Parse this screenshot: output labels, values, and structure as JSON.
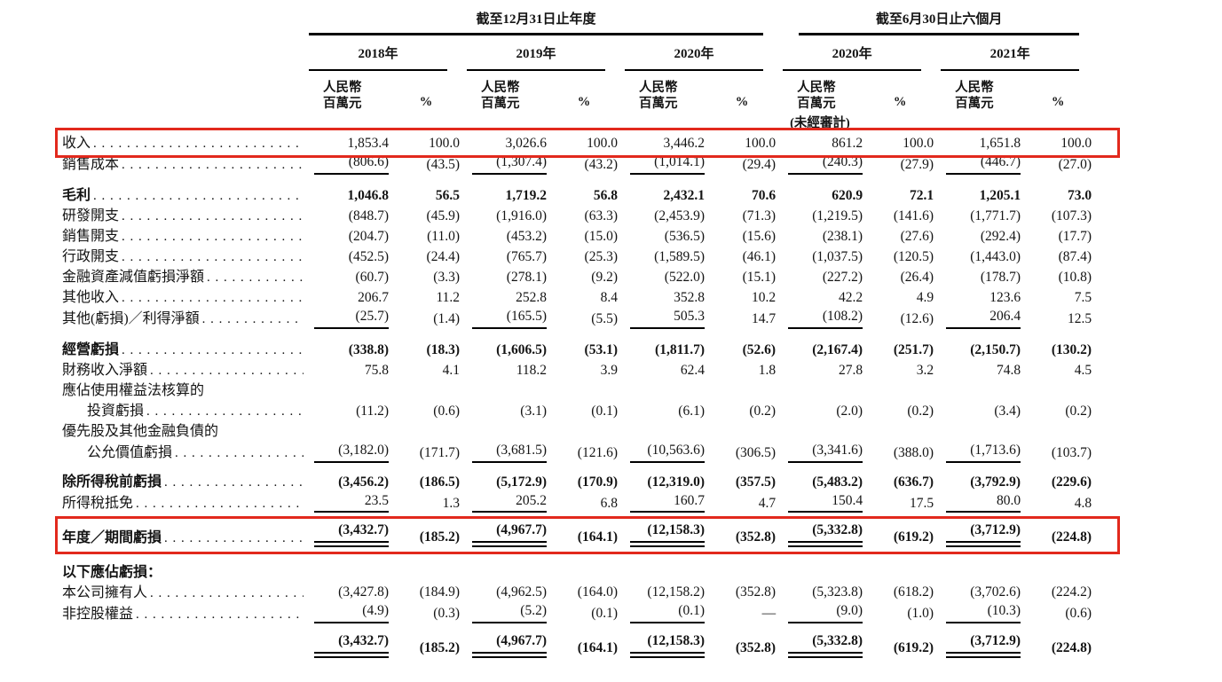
{
  "page": {
    "background": "#ffffff",
    "highlight_color": "#e2291d"
  },
  "table": {
    "col_groups": [
      {
        "title": "截至12月31日止年度",
        "years": [
          "2018年",
          "2019年",
          "2020年"
        ]
      },
      {
        "title": "截至6月30日止六個月",
        "years": [
          "2020年",
          "2021年"
        ]
      }
    ],
    "subheader": {
      "currency_line1": "人民幣",
      "currency_line2": "百萬元",
      "percent": "%"
    },
    "unaudited_note": "(未經審計)",
    "rows": [
      {
        "label": "收入",
        "leader": true,
        "highlight": true,
        "values": [
          "1,853.4",
          "100.0",
          "3,026.6",
          "100.0",
          "3,446.2",
          "100.0",
          "861.2",
          "100.0",
          "1,651.8",
          "100.0"
        ]
      },
      {
        "label": "銷售成本",
        "leader": true,
        "rule": "single",
        "values": [
          "(806.6)",
          "(43.5)",
          "(1,307.4)",
          "(43.2)",
          "(1,014.1)",
          "(29.4)",
          "(240.3)",
          "(27.9)",
          "(446.7)",
          "(27.0)"
        ]
      },
      {
        "label": "毛利",
        "leader": true,
        "bold": true,
        "space_before": 12,
        "values": [
          "1,046.8",
          "56.5",
          "1,719.2",
          "56.8",
          "2,432.1",
          "70.6",
          "620.9",
          "72.1",
          "1,205.1",
          "73.0"
        ]
      },
      {
        "label": "研發開支",
        "leader": true,
        "values": [
          "(848.7)",
          "(45.9)",
          "(1,916.0)",
          "(63.3)",
          "(2,453.9)",
          "(71.3)",
          "(1,219.5)",
          "(141.6)",
          "(1,771.7)",
          "(107.3)"
        ]
      },
      {
        "label": "銷售開支",
        "leader": true,
        "values": [
          "(204.7)",
          "(11.0)",
          "(453.2)",
          "(15.0)",
          "(536.5)",
          "(15.6)",
          "(238.1)",
          "(27.6)",
          "(292.4)",
          "(17.7)"
        ]
      },
      {
        "label": "行政開支",
        "leader": true,
        "values": [
          "(452.5)",
          "(24.4)",
          "(765.7)",
          "(25.3)",
          "(1,589.5)",
          "(46.1)",
          "(1,037.5)",
          "(120.5)",
          "(1,443.0)",
          "(87.4)"
        ]
      },
      {
        "label": "金融資產減值虧損淨額",
        "leader": true,
        "values": [
          "(60.7)",
          "(3.3)",
          "(278.1)",
          "(9.2)",
          "(522.0)",
          "(15.1)",
          "(227.2)",
          "(26.4)",
          "(178.7)",
          "(10.8)"
        ]
      },
      {
        "label": "其他收入",
        "leader": true,
        "values": [
          "206.7",
          "11.2",
          "252.8",
          "8.4",
          "352.8",
          "10.2",
          "42.2",
          "4.9",
          "123.6",
          "7.5"
        ]
      },
      {
        "label": "其他(虧損)／利得淨額",
        "leader": true,
        "rule": "single",
        "values": [
          "(25.7)",
          "(1.4)",
          "(165.5)",
          "(5.5)",
          "505.3",
          "14.7",
          "(108.2)",
          "(12.6)",
          "206.4",
          "12.5"
        ]
      },
      {
        "label": "經營虧損",
        "leader": true,
        "bold": true,
        "space_before": 12,
        "values": [
          "(338.8)",
          "(18.3)",
          "(1,606.5)",
          "(53.1)",
          "(1,811.7)",
          "(52.6)",
          "(2,167.4)",
          "(251.7)",
          "(2,150.7)",
          "(130.2)"
        ]
      },
      {
        "label": "財務收入淨額",
        "leader": true,
        "values": [
          "75.8",
          "4.1",
          "118.2",
          "3.9",
          "62.4",
          "1.8",
          "27.8",
          "3.2",
          "74.8",
          "4.5"
        ]
      },
      {
        "label": "應佔使用權益法核算的",
        "leader": false,
        "values": null
      },
      {
        "label": "投資虧損",
        "leader": true,
        "indent": 1,
        "values": [
          "(11.2)",
          "(0.6)",
          "(3.1)",
          "(0.1)",
          "(6.1)",
          "(0.2)",
          "(2.0)",
          "(0.2)",
          "(3.4)",
          "(0.2)"
        ]
      },
      {
        "label": "優先股及其他金融負債的",
        "leader": false,
        "values": null
      },
      {
        "label": "公允價值虧損",
        "leader": true,
        "indent": 1,
        "rule": "single",
        "values": [
          "(3,182.0)",
          "(171.7)",
          "(3,681.5)",
          "(121.6)",
          "(10,563.6)",
          "(306.5)",
          "(3,341.6)",
          "(388.0)",
          "(1,713.6)",
          "(103.7)"
        ]
      },
      {
        "label": "除所得稅前虧損",
        "leader": true,
        "bold": true,
        "space_before": 10,
        "values": [
          "(3,456.2)",
          "(186.5)",
          "(5,172.9)",
          "(170.9)",
          "(12,319.0)",
          "(357.5)",
          "(5,483.2)",
          "(636.7)",
          "(3,792.9)",
          "(229.6)"
        ]
      },
      {
        "label": "所得稅抵免",
        "leader": true,
        "rule": "single",
        "values": [
          "23.5",
          "1.3",
          "205.2",
          "6.8",
          "160.7",
          "4.7",
          "150.4",
          "17.5",
          "80.0",
          "4.8"
        ]
      },
      {
        "label": "年度／期間虧損",
        "leader": true,
        "bold": true,
        "rule": "double",
        "space_before": 10,
        "highlight": true,
        "values": [
          "(3,432.7)",
          "(185.2)",
          "(4,967.7)",
          "(164.1)",
          "(12,158.3)",
          "(352.8)",
          "(5,332.8)",
          "(619.2)",
          "(3,712.9)",
          "(224.8)"
        ]
      },
      {
        "label": "以下應佔虧損：",
        "leader": false,
        "bold": true,
        "space_before": 16,
        "values": null
      },
      {
        "label": "本公司擁有人",
        "leader": true,
        "values": [
          "(3,427.8)",
          "(184.9)",
          "(4,962.5)",
          "(164.0)",
          "(12,158.2)",
          "(352.8)",
          "(5,323.8)",
          "(618.2)",
          "(3,702.6)",
          "(224.2)"
        ]
      },
      {
        "label": "非控股權益",
        "leader": true,
        "rule": "single",
        "values": [
          "(4.9)",
          "(0.3)",
          "(5.2)",
          "(0.1)",
          "(0.1)",
          "—",
          "(9.0)",
          "(1.0)",
          "(10.3)",
          "(0.6)"
        ]
      },
      {
        "label": "",
        "leader": false,
        "bold": true,
        "rule": "double",
        "space_before": 10,
        "values": [
          "(3,432.7)",
          "(185.2)",
          "(4,967.7)",
          "(164.1)",
          "(12,158.3)",
          "(352.8)",
          "(5,332.8)",
          "(619.2)",
          "(3,712.9)",
          "(224.8)"
        ]
      }
    ]
  }
}
